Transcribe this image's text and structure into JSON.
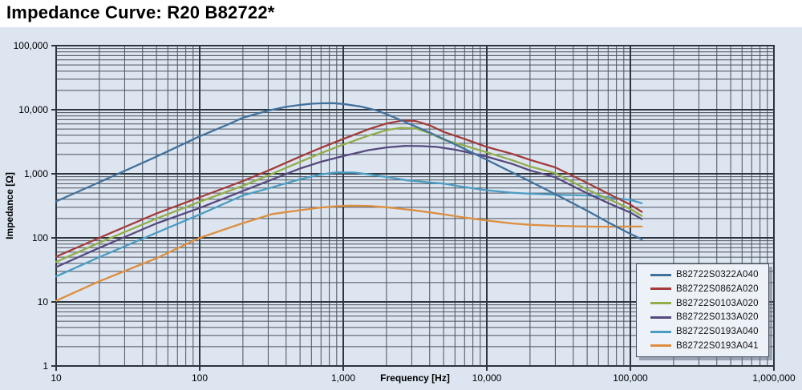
{
  "title": "Impedance Curve: R20 B82722*",
  "style": {
    "page_bg": "#ffffff",
    "chart_bg": "#dce5f0",
    "grid_major_color": "#2e353c",
    "grid_minor_color": "#4a525b",
    "legend_bg": "#edf1f8",
    "legend_border": "#4a5462"
  },
  "chart_data": {
    "type": "line",
    "title": "Impedance Curve: R20 B82722*",
    "xlabel": "Frequency [Hz]",
    "ylabel": "Impedance [Ω]",
    "x_scale": "log",
    "y_scale": "log",
    "xlim": [
      10,
      1000000
    ],
    "ylim": [
      1,
      100000
    ],
    "x_ticks": [
      {
        "value": 10,
        "label": "10"
      },
      {
        "value": 100,
        "label": "100"
      },
      {
        "value": 1000,
        "label": "1,000"
      },
      {
        "value": 10000,
        "label": "10,000"
      },
      {
        "value": 100000,
        "label": "100,000"
      },
      {
        "value": 1000000,
        "label": "1,000,000"
      }
    ],
    "y_ticks": [
      {
        "value": 1,
        "label": "1"
      },
      {
        "value": 10,
        "label": "10"
      },
      {
        "value": 100,
        "label": "100"
      },
      {
        "value": 1000,
        "label": "1,000"
      },
      {
        "value": 10000,
        "label": "10,000"
      },
      {
        "value": 100000,
        "label": "100,000"
      }
    ],
    "grid": "log major + minor, both axes",
    "legend_position": "inset bottom-right",
    "series": [
      {
        "name": "B82722S0322A040",
        "color": "#41719c",
        "points": [
          [
            10,
            370
          ],
          [
            20,
            740
          ],
          [
            50,
            1850
          ],
          [
            100,
            3850
          ],
          [
            150,
            5600
          ],
          [
            200,
            7500
          ],
          [
            300,
            9700
          ],
          [
            400,
            11100
          ],
          [
            500,
            11900
          ],
          [
            600,
            12400
          ],
          [
            700,
            12600
          ],
          [
            850,
            12650
          ],
          [
            1000,
            12300
          ],
          [
            1300,
            11300
          ],
          [
            1700,
            9800
          ],
          [
            2200,
            7800
          ],
          [
            3000,
            5800
          ],
          [
            4000,
            4400
          ],
          [
            5000,
            3500
          ],
          [
            7000,
            2450
          ],
          [
            10000,
            1650
          ],
          [
            15000,
            1050
          ],
          [
            20000,
            760
          ],
          [
            30000,
            480
          ],
          [
            50000,
            265
          ],
          [
            70000,
            175
          ],
          [
            100000,
            115
          ],
          [
            120000,
            95
          ]
        ]
      },
      {
        "name": "B82722S0862A020",
        "color": "#a33c3c",
        "points": [
          [
            10,
            51
          ],
          [
            20,
            100
          ],
          [
            50,
            240
          ],
          [
            100,
            430
          ],
          [
            200,
            770
          ],
          [
            300,
            1120
          ],
          [
            500,
            1850
          ],
          [
            700,
            2550
          ],
          [
            1000,
            3500
          ],
          [
            1500,
            4950
          ],
          [
            2000,
            6100
          ],
          [
            2600,
            6800
          ],
          [
            3200,
            6650
          ],
          [
            4000,
            5700
          ],
          [
            5000,
            4500
          ],
          [
            7000,
            3500
          ],
          [
            10000,
            2620
          ],
          [
            15000,
            2050
          ],
          [
            20000,
            1650
          ],
          [
            30000,
            1260
          ],
          [
            50000,
            720
          ],
          [
            70000,
            490
          ],
          [
            100000,
            330
          ],
          [
            120000,
            255
          ]
        ]
      },
      {
        "name": "B82722S0103A020",
        "color": "#93ad4b",
        "points": [
          [
            10,
            42
          ],
          [
            20,
            84
          ],
          [
            50,
            200
          ],
          [
            100,
            365
          ],
          [
            200,
            650
          ],
          [
            300,
            940
          ],
          [
            500,
            1530
          ],
          [
            700,
            2100
          ],
          [
            1000,
            2850
          ],
          [
            1500,
            3950
          ],
          [
            2000,
            4800
          ],
          [
            2500,
            5200
          ],
          [
            3200,
            5100
          ],
          [
            4000,
            4300
          ],
          [
            5000,
            3400
          ],
          [
            7000,
            2750
          ],
          [
            10000,
            2160
          ],
          [
            15000,
            1630
          ],
          [
            20000,
            1300
          ],
          [
            30000,
            1020
          ],
          [
            50000,
            570
          ],
          [
            70000,
            405
          ],
          [
            100000,
            283
          ],
          [
            120000,
            220
          ]
        ]
      },
      {
        "name": "B82722S0133A020",
        "color": "#55497e",
        "points": [
          [
            10,
            35
          ],
          [
            20,
            70
          ],
          [
            50,
            168
          ],
          [
            100,
            293
          ],
          [
            200,
            540
          ],
          [
            300,
            770
          ],
          [
            500,
            1210
          ],
          [
            700,
            1540
          ],
          [
            1000,
            1890
          ],
          [
            1500,
            2340
          ],
          [
            2000,
            2580
          ],
          [
            2700,
            2720
          ],
          [
            3500,
            2710
          ],
          [
            4500,
            2620
          ],
          [
            6000,
            2380
          ],
          [
            8000,
            2080
          ],
          [
            10000,
            1850
          ],
          [
            15000,
            1430
          ],
          [
            20000,
            1130
          ],
          [
            30000,
            880
          ],
          [
            50000,
            495
          ],
          [
            70000,
            350
          ],
          [
            100000,
            248
          ],
          [
            120000,
            196
          ]
        ]
      },
      {
        "name": "B82722S0193A040",
        "color": "#4a9cc2",
        "points": [
          [
            10,
            25
          ],
          [
            20,
            50
          ],
          [
            50,
            120
          ],
          [
            100,
            232
          ],
          [
            200,
            460
          ],
          [
            300,
            590
          ],
          [
            500,
            820
          ],
          [
            700,
            980
          ],
          [
            900,
            1050
          ],
          [
            1200,
            1045
          ],
          [
            1500,
            980
          ],
          [
            2000,
            890
          ],
          [
            2800,
            790
          ],
          [
            4000,
            730
          ],
          [
            5000,
            703
          ],
          [
            7000,
            620
          ],
          [
            10000,
            553
          ],
          [
            15000,
            507
          ],
          [
            20000,
            488
          ],
          [
            30000,
            472
          ],
          [
            50000,
            458
          ],
          [
            70000,
            430
          ],
          [
            100000,
            390
          ],
          [
            120000,
            348
          ]
        ]
      },
      {
        "name": "B82722S0193A041",
        "color": "#dd8e3f",
        "points": [
          [
            10,
            10.4
          ],
          [
            20,
            21
          ],
          [
            50,
            48
          ],
          [
            100,
            100
          ],
          [
            200,
            170
          ],
          [
            320,
            235
          ],
          [
            500,
            270
          ],
          [
            700,
            298
          ],
          [
            900,
            312
          ],
          [
            1100,
            318
          ],
          [
            1500,
            315
          ],
          [
            2000,
            300
          ],
          [
            3000,
            272
          ],
          [
            4000,
            250
          ],
          [
            5000,
            233
          ],
          [
            7000,
            207
          ],
          [
            10000,
            186
          ],
          [
            15000,
            168
          ],
          [
            20000,
            160
          ],
          [
            30000,
            154
          ],
          [
            50000,
            150
          ],
          [
            70000,
            149
          ],
          [
            100000,
            150
          ],
          [
            120000,
            150
          ]
        ]
      }
    ]
  }
}
